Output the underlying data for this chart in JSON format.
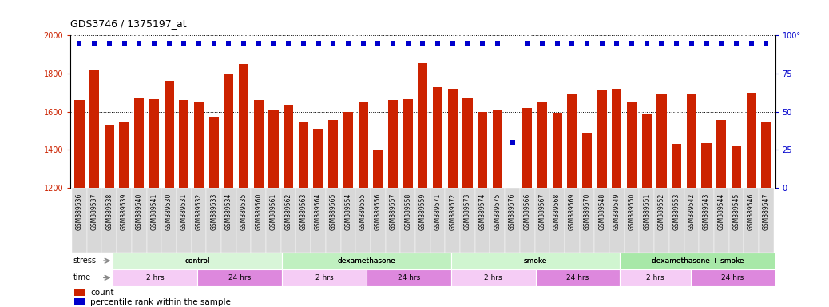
{
  "title": "GDS3746 / 1375197_at",
  "categories": [
    "GSM389536",
    "GSM389537",
    "GSM389538",
    "GSM389539",
    "GSM389540",
    "GSM389541",
    "GSM389530",
    "GSM389531",
    "GSM389532",
    "GSM389533",
    "GSM389534",
    "GSM389535",
    "GSM389560",
    "GSM389561",
    "GSM389562",
    "GSM389563",
    "GSM389564",
    "GSM389565",
    "GSM389554",
    "GSM389555",
    "GSM389556",
    "GSM389557",
    "GSM389558",
    "GSM389559",
    "GSM389571",
    "GSM389572",
    "GSM389573",
    "GSM389574",
    "GSM389575",
    "GSM389576",
    "GSM389566",
    "GSM389567",
    "GSM389568",
    "GSM389569",
    "GSM389570",
    "GSM389548",
    "GSM389549",
    "GSM389550",
    "GSM389551",
    "GSM389552",
    "GSM389553",
    "GSM389542",
    "GSM389543",
    "GSM389544",
    "GSM389545",
    "GSM389546",
    "GSM389547"
  ],
  "bar_values": [
    1660,
    1820,
    1530,
    1545,
    1670,
    1665,
    1760,
    1660,
    1650,
    1575,
    1795,
    1850,
    1660,
    1610,
    1635,
    1550,
    1510,
    1555,
    1600,
    1650,
    1400,
    1660,
    1665,
    1855,
    1730,
    1720,
    1670,
    1600,
    1605,
    1200,
    1620,
    1650,
    1595,
    1690,
    1490,
    1710,
    1720,
    1650,
    1590,
    1690,
    1430,
    1690,
    1435,
    1555,
    1420,
    1700,
    1550
  ],
  "percentile_values": [
    95,
    95,
    95,
    95,
    95,
    95,
    95,
    95,
    95,
    95,
    95,
    95,
    95,
    95,
    95,
    95,
    95,
    95,
    95,
    95,
    95,
    95,
    95,
    95,
    95,
    95,
    95,
    95,
    95,
    30,
    95,
    95,
    95,
    95,
    95,
    95,
    95,
    95,
    95,
    95,
    95,
    95,
    95,
    95,
    95,
    95,
    95
  ],
  "bar_color": "#cc2200",
  "percentile_color": "#0000cc",
  "ylim_left": [
    1200,
    2000
  ],
  "ylim_right": [
    0,
    100
  ],
  "yticks_left": [
    1200,
    1400,
    1600,
    1800,
    2000
  ],
  "yticks_right": [
    0,
    25,
    50,
    75,
    100
  ],
  "stress_groups": [
    {
      "label": "control",
      "start": 0,
      "end": 12,
      "color": "#d8f5d8"
    },
    {
      "label": "dexamethasone",
      "start": 12,
      "end": 24,
      "color": "#c0f0c0"
    },
    {
      "label": "smoke",
      "start": 24,
      "end": 36,
      "color": "#d0f5d0"
    },
    {
      "label": "dexamethasone + smoke",
      "start": 36,
      "end": 47,
      "color": "#a8e8a8"
    }
  ],
  "time_groups": [
    {
      "label": "2 hrs",
      "start": 0,
      "end": 6,
      "color": "#f5ccf5"
    },
    {
      "label": "24 hrs",
      "start": 6,
      "end": 12,
      "color": "#dd88dd"
    },
    {
      "label": "2 hrs",
      "start": 12,
      "end": 18,
      "color": "#f5ccf5"
    },
    {
      "label": "24 hrs",
      "start": 18,
      "end": 24,
      "color": "#dd88dd"
    },
    {
      "label": "2 hrs",
      "start": 24,
      "end": 30,
      "color": "#f5ccf5"
    },
    {
      "label": "24 hrs",
      "start": 30,
      "end": 36,
      "color": "#dd88dd"
    },
    {
      "label": "2 hrs",
      "start": 36,
      "end": 41,
      "color": "#f5ccf5"
    },
    {
      "label": "24 hrs",
      "start": 41,
      "end": 47,
      "color": "#dd88dd"
    }
  ],
  "stress_label": "stress",
  "time_label": "time",
  "legend_count_label": "count",
  "legend_percentile_label": "percentile rank within the sample",
  "bg_color": "#ffffff",
  "title_fontsize": 9,
  "tick_fontsize": 5.5,
  "bar_tick_bg": "#dddddd",
  "axis_label_color_left": "#cc2200",
  "axis_label_color_right": "#0000cc",
  "fig_width": 10.38,
  "fig_height": 3.84,
  "dpi": 100
}
